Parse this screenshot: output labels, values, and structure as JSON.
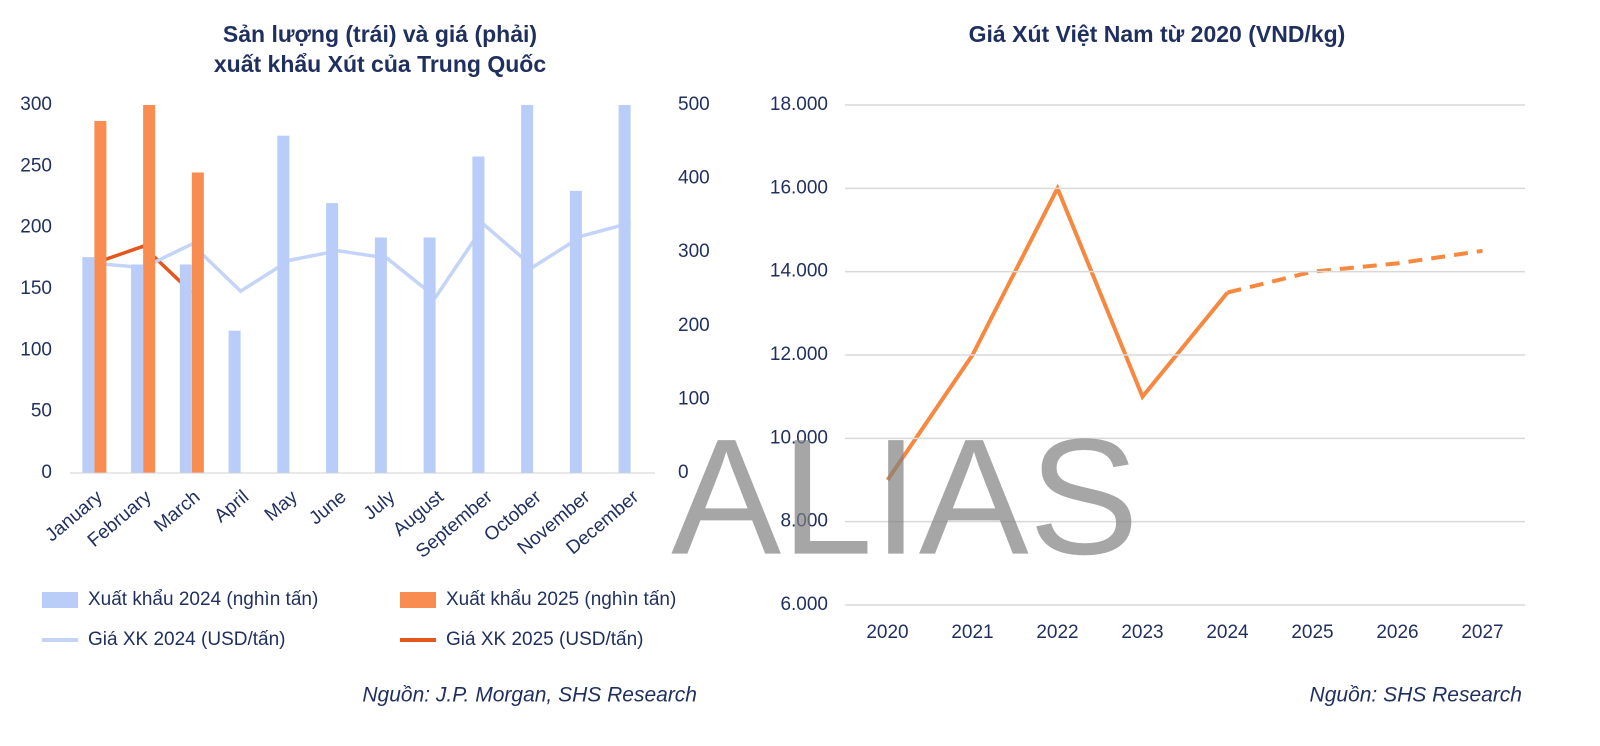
{
  "watermark": "ALIAS",
  "chart_data": [
    {
      "type": "combo",
      "title": [
        "Sản lượng (trái) và giá (phải)",
        "xuất khẩu Xút của Trung Quốc"
      ],
      "categories": [
        "January",
        "February",
        "March",
        "April",
        "May",
        "June",
        "July",
        "August",
        "September",
        "October",
        "November",
        "December"
      ],
      "series": [
        {
          "name": "Xuất khẩu 2024 (nghìn tấn)",
          "kind": "bar",
          "color": "#b9cdf8",
          "values": [
            176,
            170,
            170,
            116,
            275,
            220,
            192,
            192,
            258,
            300,
            230,
            300
          ]
        },
        {
          "name": "Xuất khẩu 2025 (nghìn tấn)",
          "kind": "bar",
          "color": "#f98c50",
          "values": [
            287,
            300,
            245,
            null,
            null,
            null,
            null,
            null,
            null,
            null,
            null,
            null
          ]
        },
        {
          "name": "Giá XK 2024 (USD/tấn)",
          "kind": "line",
          "axis": "y2",
          "color": "#c3d4f8",
          "values": [
            285,
            279,
            311,
            247,
            289,
            302,
            292,
            239,
            337,
            280,
            322,
            340
          ]
        },
        {
          "name": "Giá XK 2025 (USD/tấn)",
          "kind": "line",
          "axis": "y2",
          "color": "#e5561c",
          "values": [
            285,
            308,
            245,
            null,
            null,
            null,
            null,
            null,
            null,
            null,
            null,
            null
          ]
        }
      ],
      "ylim": [
        0,
        300
      ],
      "yticks": [
        0,
        50,
        100,
        150,
        200,
        250,
        300
      ],
      "y2lim": [
        0,
        500
      ],
      "y2ticks": [
        0,
        100,
        200,
        300,
        400,
        500
      ],
      "source": "Nguồn: J.P. Morgan, SHS Research"
    },
    {
      "type": "line",
      "title": [
        "Giá Xút Việt Nam từ 2020 (VND/kg)"
      ],
      "categories": [
        "2020",
        "2021",
        "2022",
        "2023",
        "2024",
        "2025",
        "2026",
        "2027"
      ],
      "values": [
        9000,
        12000,
        16000,
        11000,
        13500,
        14000,
        14200,
        14500
      ],
      "color": "#f7883f",
      "dashed_from_index": 4,
      "ylim": [
        6000,
        18000
      ],
      "yticks": [
        {
          "value": 6000,
          "label": "6.000"
        },
        {
          "value": 8000,
          "label": "8.000"
        },
        {
          "value": 10000,
          "label": "10.000"
        },
        {
          "value": 12000,
          "label": "12.000"
        },
        {
          "value": 14000,
          "label": "14.000"
        },
        {
          "value": 16000,
          "label": "16.000"
        },
        {
          "value": 18000,
          "label": "18.000"
        }
      ],
      "grid": true,
      "source": "Nguồn: SHS Research"
    }
  ]
}
